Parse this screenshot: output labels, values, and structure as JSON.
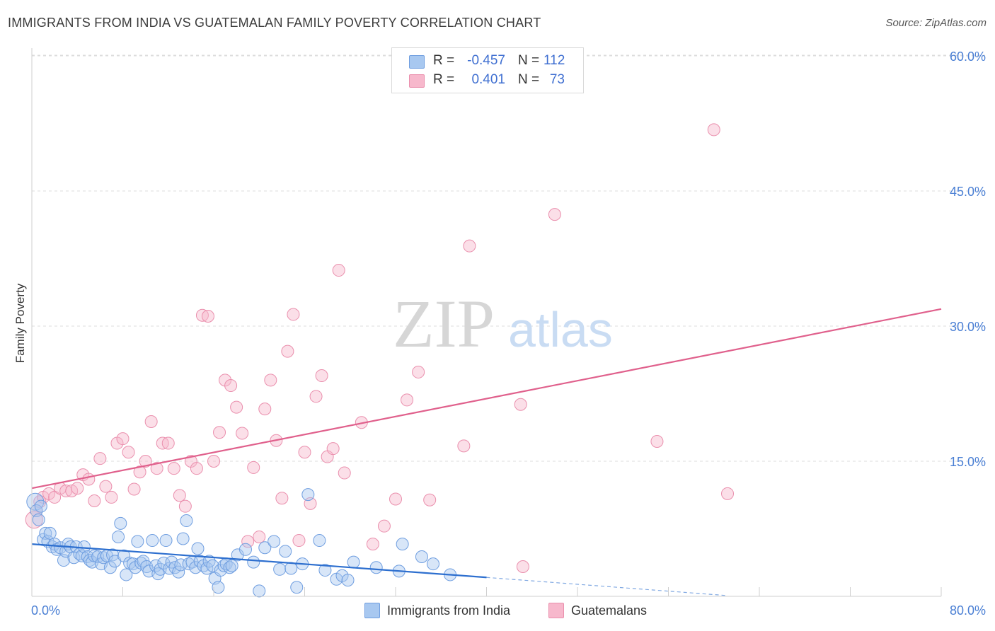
{
  "title": "IMMIGRANTS FROM INDIA VS GUATEMALAN FAMILY POVERTY CORRELATION CHART",
  "source": "Source: ZipAtlas.com",
  "watermark": {
    "zip": "ZIP",
    "atlas": "atlas"
  },
  "legend": {
    "r_label": "R =",
    "n_label": "N =",
    "series": [
      {
        "r": "-0.457",
        "n": "112"
      },
      {
        "r": "0.401",
        "n": "73"
      }
    ]
  },
  "bottom_legend": [
    "Immigrants from India",
    "Guatemalans"
  ],
  "colors": {
    "blue_fill": "#a8c8f0",
    "blue_stroke": "#6f9ee0",
    "blue_line": "#2d6fcf",
    "pink_fill": "#f7b8cc",
    "pink_stroke": "#ea8fad",
    "pink_line": "#e0608c",
    "tick_text": "#4a7fd4",
    "grid": "#dcdcdc"
  },
  "chart_data": {
    "type": "scatter",
    "title": "IMMIGRANTS FROM INDIA VS GUATEMALAN FAMILY POVERTY CORRELATION CHART",
    "xlabel": "",
    "ylabel": "Family Poverty",
    "xlim": [
      0,
      80
    ],
    "ylim": [
      0,
      60
    ],
    "x_tick_labels": [
      "0.0%",
      "80.0%"
    ],
    "y_ticks": [
      15,
      30,
      45,
      60
    ],
    "y_tick_labels": [
      "15.0%",
      "30.0%",
      "45.0%",
      "60.0%"
    ],
    "series": [
      {
        "name": "Immigrants from India",
        "color": "#a8c8f0",
        "trend": {
          "x0": 0,
          "y0": 5.8,
          "x1": 40,
          "y1": 2.1,
          "dashed_to_x": 61,
          "dashed_to_y": 0.1
        },
        "points": [
          [
            0.3,
            10.5
          ],
          [
            0.4,
            9.5
          ],
          [
            0.6,
            8.5
          ],
          [
            0.8,
            10.0
          ],
          [
            1.0,
            6.3
          ],
          [
            1.2,
            7.0
          ],
          [
            1.4,
            6.1
          ],
          [
            1.6,
            7.0
          ],
          [
            1.8,
            5.5
          ],
          [
            2.0,
            5.8
          ],
          [
            2.2,
            5.2
          ],
          [
            2.5,
            5.4
          ],
          [
            2.8,
            4.0
          ],
          [
            3.0,
            5.0
          ],
          [
            3.2,
            5.8
          ],
          [
            3.4,
            5.5
          ],
          [
            3.7,
            4.3
          ],
          [
            3.9,
            5.5
          ],
          [
            4.2,
            4.7
          ],
          [
            4.4,
            4.5
          ],
          [
            4.6,
            5.5
          ],
          [
            4.9,
            4.4
          ],
          [
            5.1,
            4.0
          ],
          [
            5.3,
            3.8
          ],
          [
            5.5,
            4.5
          ],
          [
            5.8,
            4.4
          ],
          [
            6.1,
            3.6
          ],
          [
            6.3,
            4.3
          ],
          [
            6.6,
            4.5
          ],
          [
            6.9,
            3.2
          ],
          [
            7.1,
            4.6
          ],
          [
            7.3,
            3.9
          ],
          [
            7.6,
            6.6
          ],
          [
            7.8,
            8.1
          ],
          [
            8.1,
            4.5
          ],
          [
            8.3,
            2.4
          ],
          [
            8.6,
            3.7
          ],
          [
            8.9,
            3.6
          ],
          [
            9.1,
            3.2
          ],
          [
            9.3,
            6.1
          ],
          [
            9.6,
            3.7
          ],
          [
            9.8,
            3.9
          ],
          [
            10.1,
            3.3
          ],
          [
            10.3,
            2.8
          ],
          [
            10.6,
            6.2
          ],
          [
            10.9,
            3.4
          ],
          [
            11.1,
            2.5
          ],
          [
            11.3,
            3.0
          ],
          [
            11.6,
            3.7
          ],
          [
            11.8,
            6.2
          ],
          [
            12.1,
            3.1
          ],
          [
            12.3,
            3.8
          ],
          [
            12.6,
            3.2
          ],
          [
            12.9,
            2.7
          ],
          [
            13.1,
            3.5
          ],
          [
            13.3,
            6.4
          ],
          [
            13.6,
            8.4
          ],
          [
            13.8,
            3.6
          ],
          [
            14.1,
            3.8
          ],
          [
            14.4,
            3.2
          ],
          [
            14.6,
            5.3
          ],
          [
            14.8,
            3.9
          ],
          [
            15.1,
            3.4
          ],
          [
            15.4,
            3.1
          ],
          [
            15.6,
            3.9
          ],
          [
            15.9,
            3.4
          ],
          [
            16.1,
            2.0
          ],
          [
            16.4,
            1.0
          ],
          [
            16.6,
            2.9
          ],
          [
            16.9,
            3.4
          ],
          [
            17.1,
            3.6
          ],
          [
            17.4,
            3.2
          ],
          [
            17.6,
            3.4
          ],
          [
            18.1,
            4.6
          ],
          [
            18.8,
            5.2
          ],
          [
            19.5,
            3.8
          ],
          [
            20.0,
            0.6
          ],
          [
            20.5,
            5.4
          ],
          [
            21.3,
            6.1
          ],
          [
            21.8,
            3.0
          ],
          [
            22.3,
            5.0
          ],
          [
            22.8,
            3.1
          ],
          [
            23.3,
            1.0
          ],
          [
            23.8,
            3.6
          ],
          [
            24.3,
            11.3
          ],
          [
            25.3,
            6.2
          ],
          [
            25.8,
            2.9
          ],
          [
            26.8,
            1.9
          ],
          [
            27.3,
            2.3
          ],
          [
            27.8,
            1.8
          ],
          [
            28.3,
            3.8
          ],
          [
            30.3,
            3.2
          ],
          [
            32.3,
            2.8
          ],
          [
            32.6,
            5.8
          ],
          [
            34.3,
            4.4
          ],
          [
            35.3,
            3.6
          ],
          [
            36.8,
            2.4
          ]
        ]
      },
      {
        "name": "Guatemalans",
        "color": "#f7b8cc",
        "trend": {
          "x0": 0,
          "y0": 12.0,
          "x1": 80,
          "y1": 31.9
        },
        "points": [
          [
            0.2,
            8.5
          ],
          [
            0.4,
            9.5
          ],
          [
            0.7,
            10.5
          ],
          [
            1.0,
            11.0
          ],
          [
            1.5,
            11.4
          ],
          [
            2.0,
            11.0
          ],
          [
            2.5,
            12.0
          ],
          [
            3.0,
            11.7
          ],
          [
            3.5,
            11.7
          ],
          [
            4.0,
            12.0
          ],
          [
            4.5,
            13.5
          ],
          [
            5.0,
            13.0
          ],
          [
            5.5,
            10.6
          ],
          [
            6.0,
            15.3
          ],
          [
            6.5,
            12.2
          ],
          [
            7.0,
            11.0
          ],
          [
            7.5,
            17.0
          ],
          [
            8.0,
            17.5
          ],
          [
            8.5,
            16.0
          ],
          [
            9.0,
            11.9
          ],
          [
            9.5,
            13.8
          ],
          [
            10.0,
            15.0
          ],
          [
            10.5,
            19.4
          ],
          [
            11.0,
            14.2
          ],
          [
            11.5,
            17.0
          ],
          [
            12.0,
            17.0
          ],
          [
            12.5,
            14.2
          ],
          [
            13.0,
            11.2
          ],
          [
            13.5,
            10.0
          ],
          [
            14.0,
            15.0
          ],
          [
            14.5,
            14.2
          ],
          [
            15.0,
            31.2
          ],
          [
            15.5,
            31.1
          ],
          [
            16.0,
            15.0
          ],
          [
            16.5,
            18.2
          ],
          [
            17.0,
            24.0
          ],
          [
            17.5,
            23.4
          ],
          [
            18.0,
            21.0
          ],
          [
            18.5,
            18.1
          ],
          [
            19.0,
            6.1
          ],
          [
            19.5,
            14.3
          ],
          [
            20.0,
            6.6
          ],
          [
            20.5,
            20.8
          ],
          [
            21.0,
            24.0
          ],
          [
            21.5,
            17.3
          ],
          [
            22.0,
            10.9
          ],
          [
            22.5,
            27.2
          ],
          [
            23.0,
            31.3
          ],
          [
            23.5,
            6.2
          ],
          [
            24.0,
            16.0
          ],
          [
            24.5,
            10.3
          ],
          [
            25.0,
            22.2
          ],
          [
            25.5,
            24.5
          ],
          [
            26.0,
            15.5
          ],
          [
            26.5,
            16.4
          ],
          [
            27.0,
            36.2
          ],
          [
            27.5,
            13.7
          ],
          [
            29.0,
            19.3
          ],
          [
            30.0,
            5.8
          ],
          [
            31.0,
            7.8
          ],
          [
            32.0,
            10.8
          ],
          [
            33.0,
            21.8
          ],
          [
            34.0,
            24.9
          ],
          [
            35.0,
            10.7
          ],
          [
            38.0,
            16.7
          ],
          [
            38.5,
            38.9
          ],
          [
            43.0,
            21.3
          ],
          [
            43.2,
            3.3
          ],
          [
            46.0,
            42.4
          ],
          [
            55.0,
            17.2
          ],
          [
            60.0,
            51.8
          ],
          [
            61.2,
            11.4
          ]
        ]
      }
    ]
  }
}
